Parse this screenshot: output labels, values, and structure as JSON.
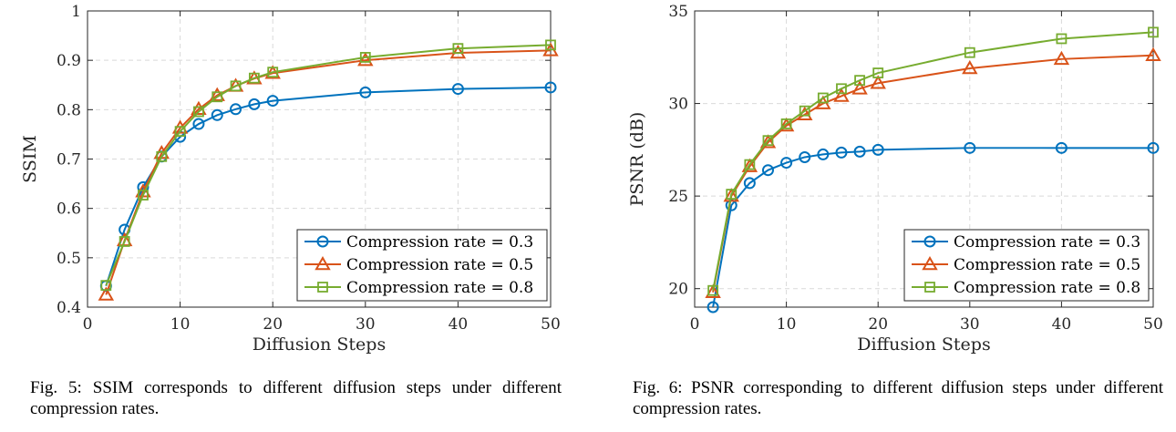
{
  "chart_data": [
    {
      "type": "line",
      "title": "",
      "xlabel": "Diffusion Steps",
      "ylabel": "SSIM",
      "xlim": [
        0,
        50
      ],
      "ylim": [
        0.4,
        1
      ],
      "xticks": [
        0,
        10,
        20,
        30,
        40,
        50
      ],
      "yticks": [
        0.4,
        0.5,
        0.6,
        0.7,
        0.8,
        0.9,
        1
      ],
      "ytick_labels": [
        "0.4",
        "0.5",
        "0.6",
        "0.7",
        "0.8",
        "0.9",
        "1"
      ],
      "grid": true,
      "legend_position": "lower-right",
      "x": [
        2,
        4,
        6,
        8,
        10,
        12,
        14,
        16,
        18,
        20,
        30,
        40,
        50
      ],
      "series": [
        {
          "name": "Compression rate = 0.3",
          "color": "#0072BD",
          "marker": "circle",
          "values": [
            0.443,
            0.557,
            0.643,
            0.705,
            0.745,
            0.771,
            0.789,
            0.801,
            0.811,
            0.818,
            0.835,
            0.842,
            0.845
          ]
        },
        {
          "name": "Compression rate = 0.5",
          "color": "#D95319",
          "marker": "triangle",
          "values": [
            0.425,
            0.535,
            0.634,
            0.712,
            0.763,
            0.801,
            0.829,
            0.848,
            0.863,
            0.874,
            0.9,
            0.915,
            0.92
          ]
        },
        {
          "name": "Compression rate = 0.8",
          "color": "#77AC30",
          "marker": "square",
          "values": [
            0.444,
            0.533,
            0.627,
            0.705,
            0.756,
            0.796,
            0.826,
            0.848,
            0.864,
            0.876,
            0.906,
            0.924,
            0.931
          ]
        }
      ]
    },
    {
      "type": "line",
      "title": "",
      "xlabel": "Diffusion Steps",
      "ylabel": "PSNR (dB)",
      "xlim": [
        0,
        50
      ],
      "ylim": [
        19,
        35
      ],
      "xticks": [
        0,
        10,
        20,
        30,
        40,
        50
      ],
      "yticks": [
        20,
        25,
        30,
        35
      ],
      "ytick_labels": [
        "20",
        "25",
        "30",
        "35"
      ],
      "grid": true,
      "legend_position": "lower-right",
      "x": [
        2,
        4,
        6,
        8,
        10,
        12,
        14,
        16,
        18,
        20,
        30,
        40,
        50
      ],
      "series": [
        {
          "name": "Compression rate = 0.3",
          "color": "#0072BD",
          "marker": "circle",
          "values": [
            19.0,
            24.5,
            25.7,
            26.4,
            26.8,
            27.1,
            27.25,
            27.35,
            27.4,
            27.5,
            27.6,
            27.6,
            27.6
          ]
        },
        {
          "name": "Compression rate = 0.5",
          "color": "#D95319",
          "marker": "triangle",
          "values": [
            19.8,
            25.0,
            26.6,
            27.9,
            28.8,
            29.4,
            30.0,
            30.4,
            30.8,
            31.1,
            31.9,
            32.4,
            32.6
          ]
        },
        {
          "name": "Compression rate = 0.8",
          "color": "#77AC30",
          "marker": "square",
          "values": [
            19.9,
            25.1,
            26.7,
            28.0,
            28.9,
            29.6,
            30.3,
            30.8,
            31.25,
            31.65,
            32.75,
            33.5,
            33.85
          ]
        }
      ]
    }
  ],
  "captions": [
    {
      "prefix": "Fig. 5:",
      "text": "SSIM corresponds to different diffusion steps under different compression rates."
    },
    {
      "prefix": "Fig. 6:",
      "text": "PSNR corresponding to different diffusion steps under different compression rates."
    }
  ]
}
